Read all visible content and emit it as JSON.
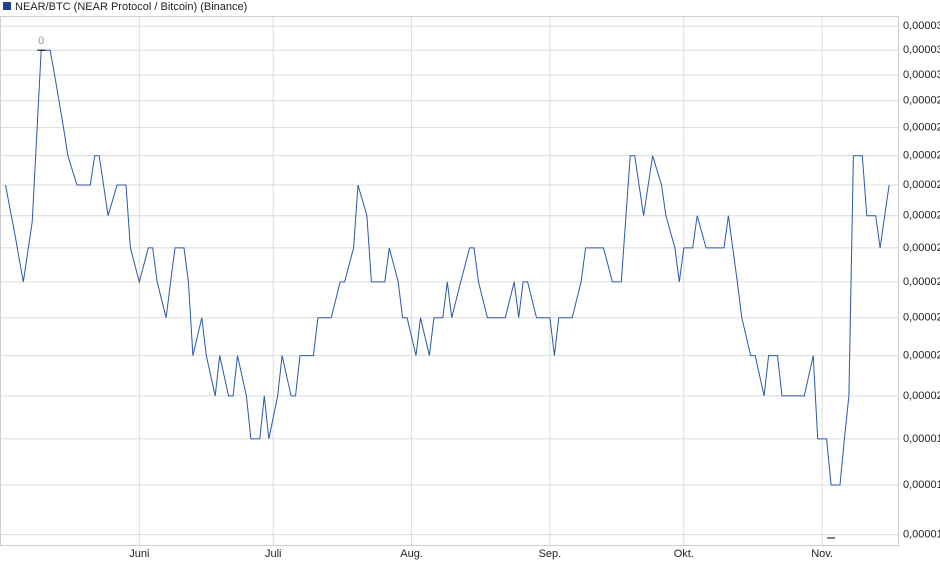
{
  "chart_data": {
    "type": "line",
    "log_scale": true,
    "grid": true,
    "max_label": "0",
    "x": [
      0,
      2,
      4,
      6,
      8,
      10,
      11,
      13,
      14,
      16,
      19,
      20,
      21,
      23,
      25,
      27,
      28,
      30,
      32,
      33,
      34,
      36,
      37,
      38,
      40,
      41,
      42,
      44,
      45,
      47,
      48,
      50,
      51,
      52,
      54,
      55,
      57,
      58,
      59,
      61,
      62,
      64,
      65,
      66,
      69,
      70,
      73,
      75,
      76,
      78,
      79,
      81,
      82,
      85,
      86,
      88,
      89,
      90,
      92,
      93,
      95,
      96,
      98,
      99,
      100,
      102,
      104,
      105,
      106,
      108,
      112,
      114,
      115,
      116,
      117,
      119,
      122,
      123,
      124,
      127,
      129,
      130,
      134,
      136,
      138,
      140,
      141,
      143,
      145,
      147,
      148,
      150,
      151,
      152,
      154,
      155,
      157,
      161,
      162,
      164,
      165,
      167,
      168,
      170,
      171,
      173,
      174,
      179,
      181,
      182,
      184,
      185,
      187,
      188,
      189,
      190,
      192,
      193,
      195,
      196,
      198
    ],
    "series": [
      {
        "name": "NEAR/BTC (NEAR Protocol / Bitcoin) (Binance)",
        "color": "#2a5aa8",
        "values": [
          2.15e-05,
          2e-05,
          1.85e-05,
          2.03e-05,
          2.65e-05,
          2.65e-05,
          2.55e-05,
          2.35e-05,
          2.25e-05,
          2.15e-05,
          2.15e-05,
          2.25e-05,
          2.25e-05,
          2.05e-05,
          2.15e-05,
          2.15e-05,
          1.95e-05,
          1.85e-05,
          1.95e-05,
          1.95e-05,
          1.85e-05,
          1.75e-05,
          1.85e-05,
          1.95e-05,
          1.95e-05,
          1.85e-05,
          1.65e-05,
          1.75e-05,
          1.65e-05,
          1.55e-05,
          1.65e-05,
          1.55e-05,
          1.55e-05,
          1.65e-05,
          1.55e-05,
          1.45e-05,
          1.45e-05,
          1.55e-05,
          1.45e-05,
          1.55e-05,
          1.65e-05,
          1.55e-05,
          1.55e-05,
          1.65e-05,
          1.65e-05,
          1.75e-05,
          1.75e-05,
          1.85e-05,
          1.85e-05,
          1.95e-05,
          2.15e-05,
          2.05e-05,
          1.85e-05,
          1.85e-05,
          1.95e-05,
          1.85e-05,
          1.75e-05,
          1.75e-05,
          1.65e-05,
          1.75e-05,
          1.65e-05,
          1.75e-05,
          1.75e-05,
          1.85e-05,
          1.75e-05,
          1.85e-05,
          1.95e-05,
          1.95e-05,
          1.85e-05,
          1.75e-05,
          1.75e-05,
          1.85e-05,
          1.75e-05,
          1.85e-05,
          1.85e-05,
          1.75e-05,
          1.75e-05,
          1.65e-05,
          1.75e-05,
          1.75e-05,
          1.85e-05,
          1.95e-05,
          1.95e-05,
          1.85e-05,
          1.85e-05,
          2.25e-05,
          2.25e-05,
          2.05e-05,
          2.25e-05,
          2.15e-05,
          2.05e-05,
          1.95e-05,
          1.85e-05,
          1.95e-05,
          1.95e-05,
          2.05e-05,
          1.95e-05,
          1.95e-05,
          2.05e-05,
          1.85e-05,
          1.75e-05,
          1.65e-05,
          1.65e-05,
          1.55e-05,
          1.65e-05,
          1.65e-05,
          1.55e-05,
          1.55e-05,
          1.65e-05,
          1.45e-05,
          1.45e-05,
          1.35e-05,
          1.35e-05,
          1.45e-05,
          1.55e-05,
          2.25e-05,
          2.25e-05,
          2.05e-05,
          2.05e-05,
          1.95e-05,
          2.15e-05
        ]
      }
    ],
    "xlim": [
      -1,
      200
    ],
    "xticks": [
      {
        "value": 30,
        "label": "Juni"
      },
      {
        "value": 60,
        "label": "Juli"
      },
      {
        "value": 91,
        "label": "Aug."
      },
      {
        "value": 122,
        "label": "Sep."
      },
      {
        "value": 152,
        "label": "Okt."
      },
      {
        "value": 183,
        "label": "Nov."
      }
    ],
    "ylim": [
      1.23e-05,
      2.79e-05
    ],
    "yticks": [
      {
        "value": 1.25e-05,
        "label": "0,00001"
      },
      {
        "value": 1.35e-05,
        "label": "0,00001"
      },
      {
        "value": 1.45e-05,
        "label": "0,00001"
      },
      {
        "value": 1.55e-05,
        "label": "0,00002"
      },
      {
        "value": 1.65e-05,
        "label": "0,00002"
      },
      {
        "value": 1.75e-05,
        "label": "0,00002"
      },
      {
        "value": 1.85e-05,
        "label": "0,00002"
      },
      {
        "value": 1.95e-05,
        "label": "0,00002"
      },
      {
        "value": 2.05e-05,
        "label": "0,00002"
      },
      {
        "value": 2.15e-05,
        "label": "0,00002"
      },
      {
        "value": 2.25e-05,
        "label": "0,00002"
      },
      {
        "value": 2.35e-05,
        "label": "0,00002"
      },
      {
        "value": 2.45e-05,
        "label": "0,00002"
      },
      {
        "value": 2.55e-05,
        "label": "0,00003"
      },
      {
        "value": 2.65e-05,
        "label": "0,00003"
      },
      {
        "value": 2.75e-05,
        "label": "0,00003"
      }
    ]
  }
}
